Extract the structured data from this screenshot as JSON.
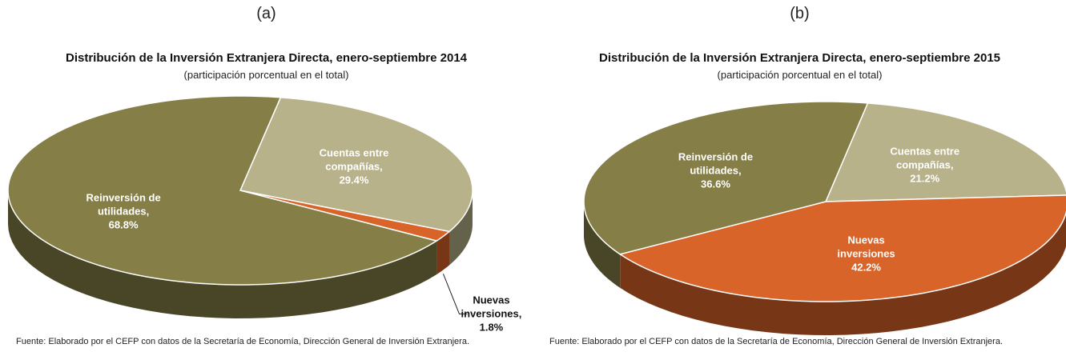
{
  "chart_data": [
    {
      "type": "pie",
      "panel": "(a)",
      "title": "Distribución de la Inversión Extranjera Directa, enero-septiembre 2014",
      "subtitle": "(participación porcentual en el total)",
      "categories": [
        "Cuentas entre compañías,",
        "Nuevas inversiones,",
        "Reinversión de utilidades,"
      ],
      "values": [
        29.4,
        1.8,
        68.8
      ],
      "value_labels": [
        "29.4%",
        "1.8%",
        "68.8%"
      ],
      "colors": [
        "#b8b28a",
        "#d8642a",
        "#857f47"
      ],
      "source": "Fuente: Elaborado por el CEFP con datos de la Secretaría de Economía, Dirección General de Inversión Extranjera."
    },
    {
      "type": "pie",
      "panel": "(b)",
      "title": "Distribución de la Inversión Extranjera Directa, enero-septiembre 2015",
      "subtitle": "(participación porcentual en el total)",
      "categories": [
        "Cuentas entre compañías,",
        "Nuevas inversiones",
        "Reinversión de utilidades,"
      ],
      "values": [
        21.2,
        42.2,
        36.6
      ],
      "value_labels": [
        "21.2%",
        "42.2%",
        "36.6%"
      ],
      "colors": [
        "#b8b28a",
        "#d8642a",
        "#857f47"
      ],
      "source": "Fuente: Elaborado por el CEFP con datos de la Secretaría de Economía, Dirección General de Inversión Extranjera."
    }
  ]
}
